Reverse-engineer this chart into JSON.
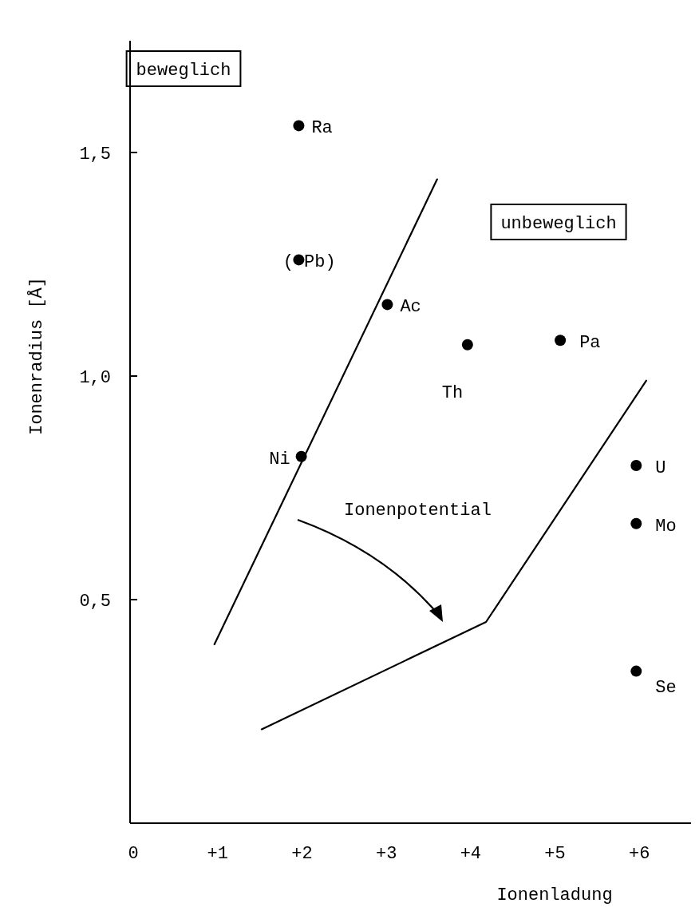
{
  "chart_data": {
    "type": "scatter",
    "xlabel": "Ionenladung",
    "ylabel": "Ionenradius [Å]",
    "xlim": [
      0,
      6.65
    ],
    "ylim": [
      0,
      1.75
    ],
    "xticks": [
      0,
      {
        "value": 1,
        "label": "+1"
      },
      {
        "value": 2,
        "label": "+2"
      },
      {
        "value": 3,
        "label": "+3"
      },
      {
        "value": 4,
        "label": "+4"
      },
      {
        "value": 5,
        "label": "+5"
      },
      {
        "value": 6,
        "label": "+6"
      }
    ],
    "yticks": [
      {
        "value": 0.5,
        "label": "0,5"
      },
      {
        "value": 1,
        "label": "1,0"
      },
      {
        "value": 1.5,
        "label": "1,5"
      }
    ],
    "grid": false,
    "marker": "circle",
    "series": [
      {
        "color": "#000000",
        "x": [
          2,
          2,
          3.05,
          4,
          5.1,
          2.03,
          6,
          6,
          6
        ],
        "values": [
          1.56,
          1.26,
          1.16,
          1.07,
          1.08,
          0.82,
          0.8,
          0.67,
          0.34
        ]
      },
      {
        "type": "line",
        "color": "#000000",
        "marker": "none",
        "x": [
          1,
          3.64
        ],
        "values": [
          0.4,
          1.44
        ]
      },
      {
        "type": "line",
        "color": "#000000",
        "marker": "none",
        "x": [
          1.56,
          4.22,
          6.12
        ],
        "values": [
          0.21,
          0.45,
          0.99
        ]
      }
    ],
    "annotations": [
      "beweglich",
      "unbeweglich",
      "Ionenpotential",
      {
        "text": "Ra",
        "x": 2,
        "y": 1.56
      },
      {
        "text": "( Pb)",
        "x": 2,
        "y": 1.26
      },
      {
        "text": "Ac",
        "x": 3.05,
        "y": 1.16
      },
      {
        "text": "Th",
        "x": 4,
        "y": 1.07
      },
      {
        "text": "Pa",
        "x": 5.1,
        "y": 1.08
      },
      {
        "text": "Ni",
        "x": 2.03,
        "y": 0.82
      },
      {
        "text": "U",
        "x": 6,
        "y": 0.8
      },
      {
        "text": "Mo",
        "x": 6,
        "y": 0.67
      },
      {
        "text": "Se",
        "x": 6,
        "y": 0.34
      }
    ]
  }
}
